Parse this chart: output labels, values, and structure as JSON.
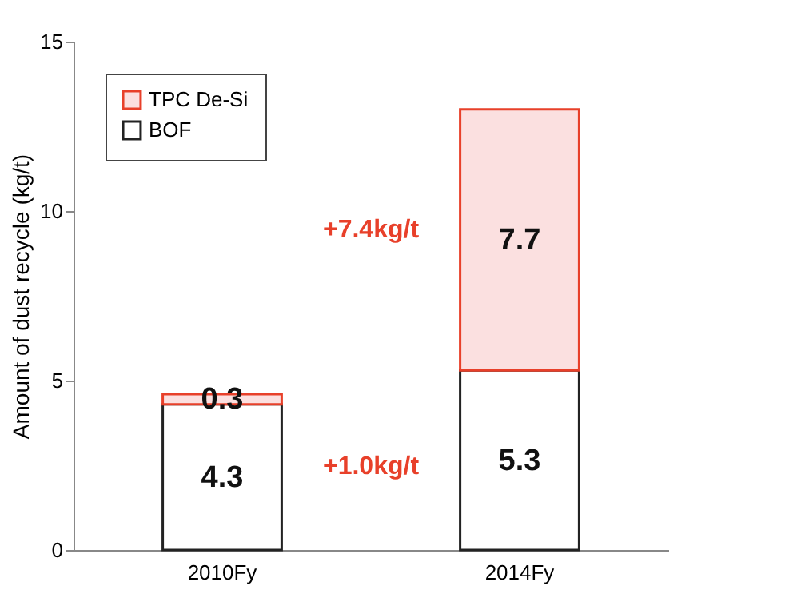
{
  "chart_data": {
    "type": "bar",
    "stacked": true,
    "ylabel": "Amount of dust recycle (kg/t)",
    "categories": [
      "2010Fy",
      "2014Fy"
    ],
    "series": [
      {
        "name": "BOF",
        "color": "#ffffff",
        "values": [
          4.3,
          5.3
        ]
      },
      {
        "name": "TPC De-Si",
        "color": "#fbe0e0",
        "values": [
          0.3,
          7.7
        ]
      }
    ],
    "ylim": [
      0,
      15
    ],
    "yticks": [
      0,
      5,
      10,
      15
    ],
    "data_labels": true,
    "legend": "top left",
    "grid": false,
    "annotations": [
      "+7.4kg/t",
      "+1.0kg/t"
    ]
  }
}
